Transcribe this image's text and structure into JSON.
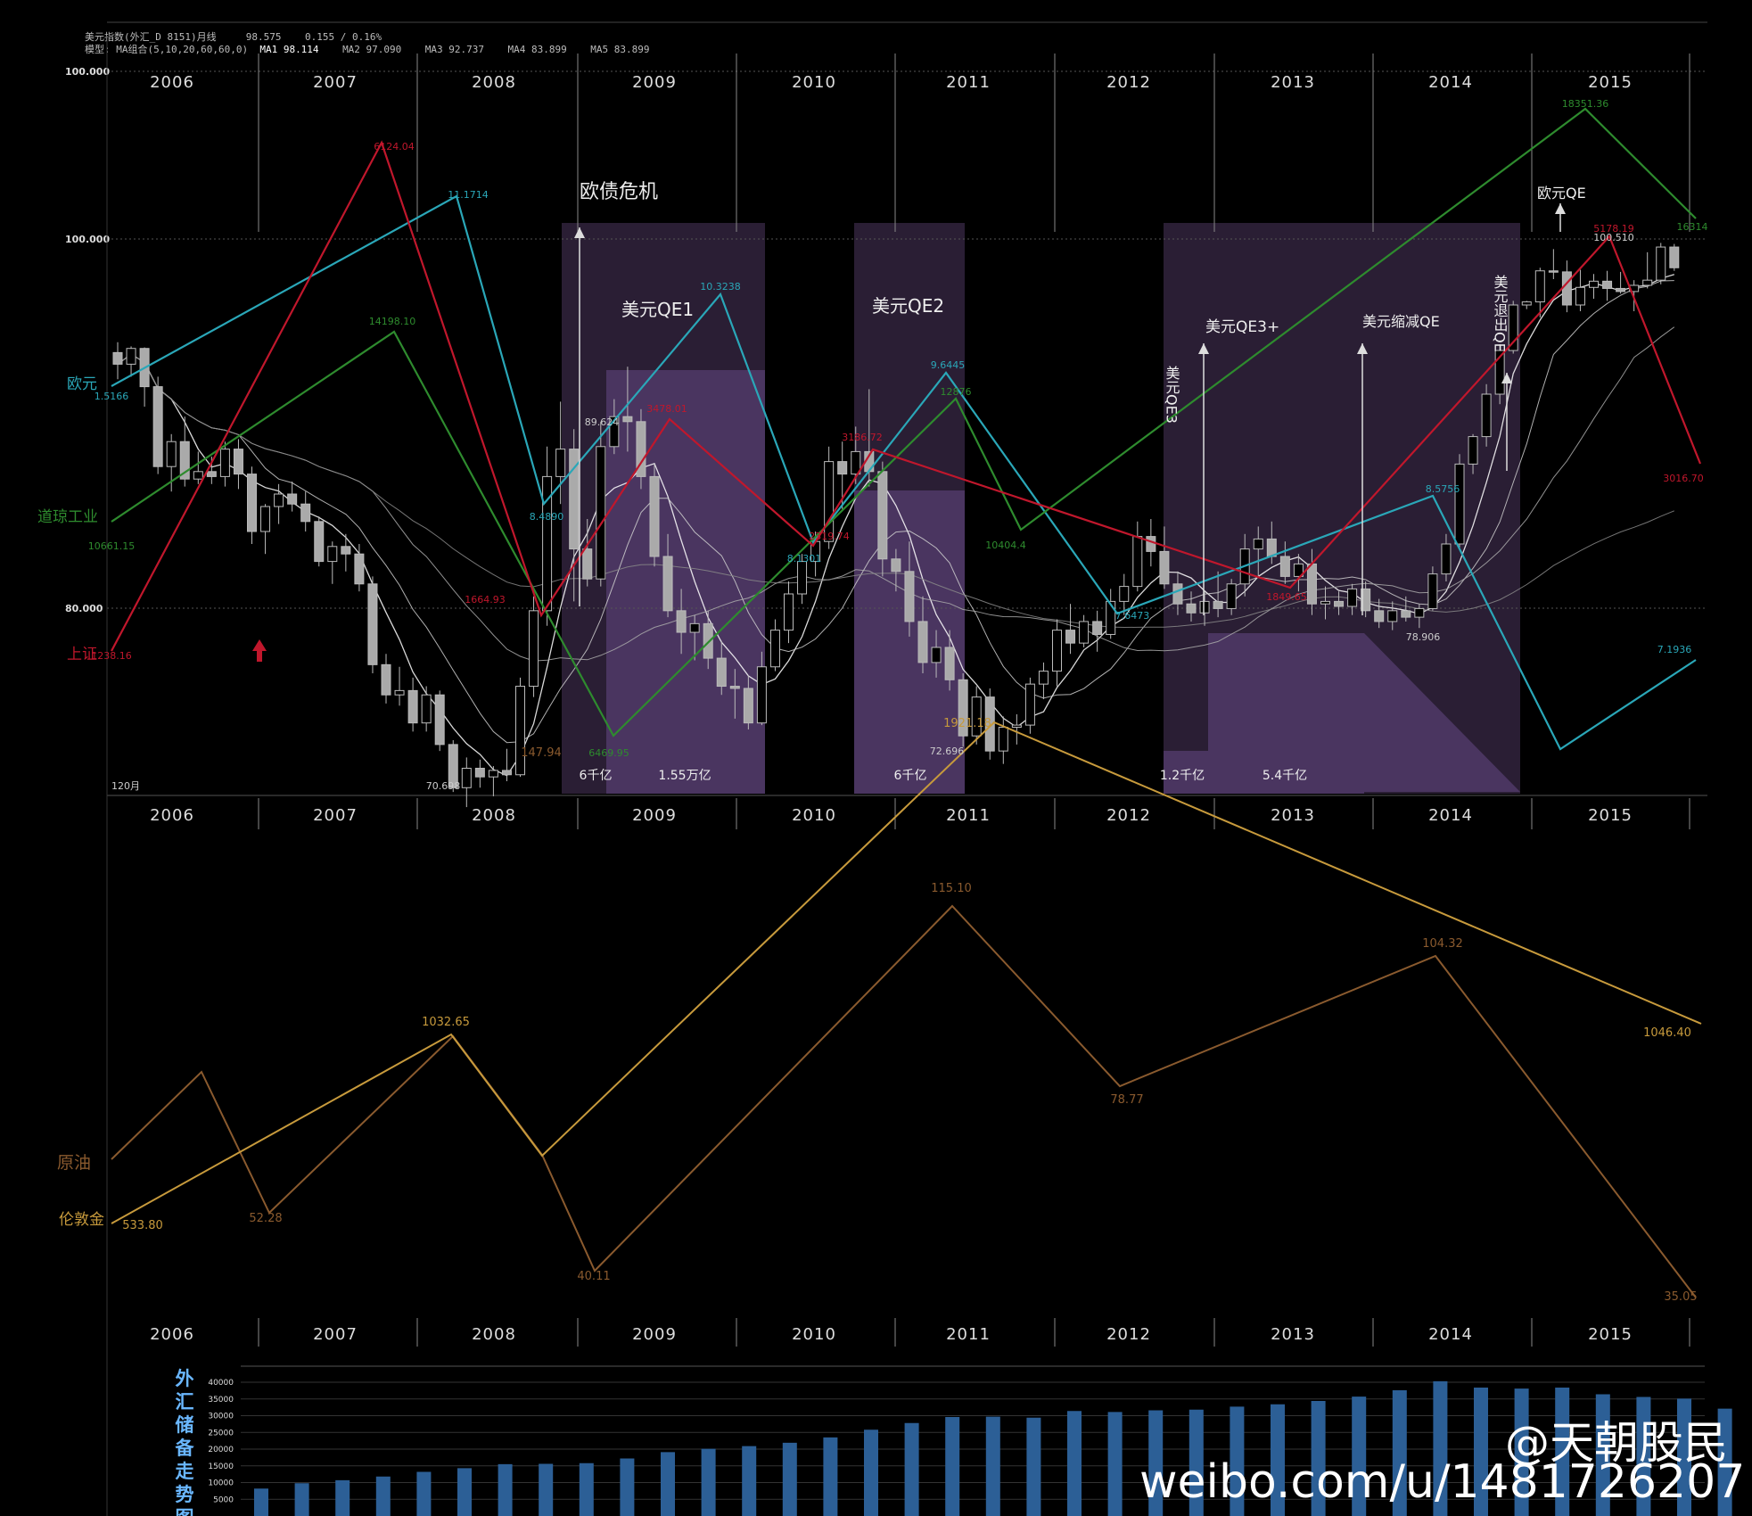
{
  "header": {
    "line1_name": "美元指数(外汇_D 8151)月线",
    "line1_price": "98.575",
    "line1_change": "0.155 / 0.16%",
    "line2_model": "模型: MA组合(5,10,20,60,60,0)",
    "ma1": "MA1 98.114",
    "ma2": "MA2 97.090",
    "ma3": "MA3 92.737",
    "ma4": "MA4 83.899",
    "ma5": "MA5 83.899"
  },
  "axis": {
    "y_labels": [
      "100.000",
      "100.000",
      "80.000"
    ],
    "period_label": "120月"
  },
  "chart_data": [
    {
      "type": "candlestick",
      "name": "美元指数 月线",
      "years_top": [
        "2006",
        "2007",
        "2008",
        "2009",
        "2010",
        "2011",
        "2012",
        "2013",
        "2014",
        "2015"
      ],
      "years_bottom": [
        "2006",
        "2007",
        "2008",
        "2009",
        "2010",
        "2011",
        "2012",
        "2013",
        "2014",
        "2015"
      ],
      "years_oil": [
        "2006",
        "2007",
        "2008",
        "2009",
        "2010",
        "2011",
        "2012",
        "2013",
        "2014",
        "2015"
      ],
      "candles": [
        {
          "o": 90.4,
          "h": 91.4,
          "l": 89.1,
          "c": 89.7
        },
        {
          "o": 89.7,
          "h": 91.0,
          "l": 89.2,
          "c": 90.8
        },
        {
          "o": 90.8,
          "h": 90.9,
          "l": 88.0,
          "c": 88.8
        },
        {
          "o": 88.8,
          "h": 89.2,
          "l": 85.3,
          "c": 85.6
        },
        {
          "o": 85.6,
          "h": 86.9,
          "l": 84.6,
          "c": 86.6
        },
        {
          "o": 86.6,
          "h": 87.6,
          "l": 84.8,
          "c": 85.1
        },
        {
          "o": 85.1,
          "h": 86.2,
          "l": 84.9,
          "c": 85.4
        },
        {
          "o": 85.4,
          "h": 86.0,
          "l": 84.9,
          "c": 85.2
        },
        {
          "o": 85.2,
          "h": 86.6,
          "l": 84.8,
          "c": 86.3
        },
        {
          "o": 86.3,
          "h": 86.7,
          "l": 84.7,
          "c": 85.3
        },
        {
          "o": 85.3,
          "h": 85.6,
          "l": 82.5,
          "c": 83.0
        },
        {
          "o": 83.0,
          "h": 84.1,
          "l": 82.1,
          "c": 84.0
        },
        {
          "o": 84.0,
          "h": 84.9,
          "l": 83.3,
          "c": 84.5
        },
        {
          "o": 84.5,
          "h": 85.0,
          "l": 83.8,
          "c": 84.1
        },
        {
          "o": 84.1,
          "h": 84.6,
          "l": 83.0,
          "c": 83.4
        },
        {
          "o": 83.4,
          "h": 83.6,
          "l": 81.6,
          "c": 81.8
        },
        {
          "o": 81.8,
          "h": 82.6,
          "l": 80.9,
          "c": 82.4
        },
        {
          "o": 82.4,
          "h": 82.9,
          "l": 81.4,
          "c": 82.1
        },
        {
          "o": 82.1,
          "h": 82.5,
          "l": 80.6,
          "c": 80.9
        },
        {
          "o": 80.9,
          "h": 81.2,
          "l": 76.9,
          "c": 77.3
        },
        {
          "o": 77.3,
          "h": 77.8,
          "l": 75.5,
          "c": 75.9
        },
        {
          "o": 75.9,
          "h": 77.2,
          "l": 75.4,
          "c": 76.1
        },
        {
          "o": 76.1,
          "h": 76.7,
          "l": 74.2,
          "c": 74.6
        },
        {
          "o": 74.6,
          "h": 76.3,
          "l": 74.2,
          "c": 75.9
        },
        {
          "o": 75.9,
          "h": 76.1,
          "l": 73.3,
          "c": 73.6
        },
        {
          "o": 73.6,
          "h": 73.8,
          "l": 71.4,
          "c": 71.6
        },
        {
          "o": 71.6,
          "h": 73.0,
          "l": 70.7,
          "c": 72.5
        },
        {
          "o": 72.5,
          "h": 72.9,
          "l": 71.6,
          "c": 72.1
        },
        {
          "o": 72.1,
          "h": 72.6,
          "l": 71.2,
          "c": 72.4
        },
        {
          "o": 72.4,
          "h": 73.4,
          "l": 71.9,
          "c": 72.2
        },
        {
          "o": 72.2,
          "h": 76.7,
          "l": 72.1,
          "c": 76.3
        },
        {
          "o": 76.3,
          "h": 80.4,
          "l": 75.8,
          "c": 79.8
        },
        {
          "o": 79.8,
          "h": 86.4,
          "l": 79.1,
          "c": 85.2
        },
        {
          "o": 85.2,
          "h": 88.2,
          "l": 84.1,
          "c": 86.3
        },
        {
          "o": 86.3,
          "h": 87.1,
          "l": 80.2,
          "c": 82.3
        },
        {
          "o": 82.3,
          "h": 83.5,
          "l": 80.8,
          "c": 81.1
        },
        {
          "o": 81.1,
          "h": 87.4,
          "l": 80.8,
          "c": 86.4
        },
        {
          "o": 86.4,
          "h": 88.3,
          "l": 86.1,
          "c": 87.6
        },
        {
          "o": 87.6,
          "h": 89.6,
          "l": 86.2,
          "c": 87.4
        },
        {
          "o": 87.4,
          "h": 87.9,
          "l": 84.7,
          "c": 85.2
        },
        {
          "o": 85.2,
          "h": 85.7,
          "l": 81.6,
          "c": 82.0
        },
        {
          "o": 82.0,
          "h": 82.9,
          "l": 79.5,
          "c": 79.8
        },
        {
          "o": 79.8,
          "h": 80.7,
          "l": 77.8,
          "c": 78.8
        },
        {
          "o": 78.8,
          "h": 79.6,
          "l": 77.5,
          "c": 79.2
        },
        {
          "o": 79.2,
          "h": 79.8,
          "l": 77.1,
          "c": 77.6
        },
        {
          "o": 77.6,
          "h": 78.4,
          "l": 75.9,
          "c": 76.3
        },
        {
          "o": 76.3,
          "h": 77.1,
          "l": 74.8,
          "c": 76.2
        },
        {
          "o": 76.2,
          "h": 76.8,
          "l": 74.3,
          "c": 74.6
        },
        {
          "o": 74.6,
          "h": 77.9,
          "l": 74.5,
          "c": 77.2
        },
        {
          "o": 77.2,
          "h": 79.4,
          "l": 77.0,
          "c": 78.9
        },
        {
          "o": 78.9,
          "h": 81.0,
          "l": 78.3,
          "c": 80.5
        },
        {
          "o": 80.5,
          "h": 82.1,
          "l": 80.1,
          "c": 81.8
        },
        {
          "o": 81.8,
          "h": 83.0,
          "l": 81.2,
          "c": 82.6
        },
        {
          "o": 82.6,
          "h": 86.4,
          "l": 82.3,
          "c": 85.8
        },
        {
          "o": 85.8,
          "h": 86.6,
          "l": 83.9,
          "c": 85.3
        },
        {
          "o": 85.3,
          "h": 87.2,
          "l": 84.9,
          "c": 86.2
        },
        {
          "o": 86.2,
          "h": 88.7,
          "l": 84.8,
          "c": 85.4
        },
        {
          "o": 85.4,
          "h": 85.8,
          "l": 81.2,
          "c": 81.9
        },
        {
          "o": 81.9,
          "h": 82.3,
          "l": 80.6,
          "c": 81.4
        },
        {
          "o": 81.4,
          "h": 82.6,
          "l": 78.6,
          "c": 79.3
        },
        {
          "o": 79.3,
          "h": 80.4,
          "l": 76.9,
          "c": 77.4
        },
        {
          "o": 77.4,
          "h": 78.9,
          "l": 76.7,
          "c": 78.1
        },
        {
          "o": 78.1,
          "h": 78.9,
          "l": 76.1,
          "c": 76.6
        },
        {
          "o": 76.6,
          "h": 76.9,
          "l": 73.5,
          "c": 74.0
        },
        {
          "o": 74.0,
          "h": 76.3,
          "l": 73.6,
          "c": 75.8
        },
        {
          "o": 75.8,
          "h": 76.2,
          "l": 72.9,
          "c": 73.3
        },
        {
          "o": 73.3,
          "h": 74.9,
          "l": 72.7,
          "c": 74.4
        },
        {
          "o": 74.4,
          "h": 75.0,
          "l": 73.6,
          "c": 74.5
        },
        {
          "o": 74.5,
          "h": 76.7,
          "l": 74.1,
          "c": 76.4
        },
        {
          "o": 76.4,
          "h": 77.4,
          "l": 75.7,
          "c": 77.0
        },
        {
          "o": 77.0,
          "h": 79.4,
          "l": 76.3,
          "c": 78.9
        },
        {
          "o": 78.9,
          "h": 80.1,
          "l": 77.8,
          "c": 78.3
        },
        {
          "o": 78.3,
          "h": 79.6,
          "l": 78.1,
          "c": 79.3
        },
        {
          "o": 79.3,
          "h": 79.8,
          "l": 77.9,
          "c": 78.7
        },
        {
          "o": 78.7,
          "h": 80.7,
          "l": 78.5,
          "c": 80.2
        },
        {
          "o": 80.2,
          "h": 81.3,
          "l": 79.6,
          "c": 80.8
        },
        {
          "o": 80.8,
          "h": 83.4,
          "l": 80.6,
          "c": 82.8
        },
        {
          "o": 82.8,
          "h": 83.5,
          "l": 81.6,
          "c": 82.2
        },
        {
          "o": 82.2,
          "h": 83.2,
          "l": 80.7,
          "c": 80.9
        },
        {
          "o": 80.9,
          "h": 81.4,
          "l": 79.6,
          "c": 80.1
        },
        {
          "o": 80.1,
          "h": 80.6,
          "l": 79.3,
          "c": 79.7
        },
        {
          "o": 79.7,
          "h": 80.6,
          "l": 79.1,
          "c": 80.2
        },
        {
          "o": 80.2,
          "h": 81.4,
          "l": 79.5,
          "c": 79.9
        },
        {
          "o": 79.9,
          "h": 81.1,
          "l": 79.6,
          "c": 80.9
        },
        {
          "o": 80.9,
          "h": 82.9,
          "l": 80.4,
          "c": 82.3
        },
        {
          "o": 82.3,
          "h": 83.2,
          "l": 81.2,
          "c": 82.7
        },
        {
          "o": 82.7,
          "h": 83.4,
          "l": 81.7,
          "c": 82.0
        },
        {
          "o": 82.0,
          "h": 82.6,
          "l": 80.9,
          "c": 81.2
        },
        {
          "o": 81.2,
          "h": 82.1,
          "l": 80.6,
          "c": 81.7
        },
        {
          "o": 81.7,
          "h": 82.3,
          "l": 79.6,
          "c": 80.1
        },
        {
          "o": 80.1,
          "h": 80.8,
          "l": 79.4,
          "c": 80.2
        },
        {
          "o": 80.2,
          "h": 80.6,
          "l": 79.6,
          "c": 80.0
        },
        {
          "o": 80.0,
          "h": 80.9,
          "l": 79.6,
          "c": 80.7
        },
        {
          "o": 80.7,
          "h": 81.0,
          "l": 79.5,
          "c": 79.8
        },
        {
          "o": 79.8,
          "h": 80.3,
          "l": 79.0,
          "c": 79.3
        },
        {
          "o": 79.3,
          "h": 80.2,
          "l": 78.9,
          "c": 79.8
        },
        {
          "o": 79.8,
          "h": 80.4,
          "l": 79.3,
          "c": 79.5
        },
        {
          "o": 79.5,
          "h": 80.1,
          "l": 79.0,
          "c": 79.9
        },
        {
          "o": 79.9,
          "h": 81.6,
          "l": 79.8,
          "c": 81.3
        },
        {
          "o": 81.3,
          "h": 82.9,
          "l": 81.0,
          "c": 82.5
        },
        {
          "o": 82.5,
          "h": 86.1,
          "l": 82.3,
          "c": 85.7
        },
        {
          "o": 85.7,
          "h": 86.9,
          "l": 85.3,
          "c": 86.8
        },
        {
          "o": 86.8,
          "h": 88.9,
          "l": 86.4,
          "c": 88.5
        },
        {
          "o": 88.5,
          "h": 91.2,
          "l": 88.1,
          "c": 90.6
        },
        {
          "o": 90.6,
          "h": 95.4,
          "l": 90.3,
          "c": 95.0
        },
        {
          "o": 95.0,
          "h": 95.4,
          "l": 94.6,
          "c": 95.3
        },
        {
          "o": 95.3,
          "h": 98.6,
          "l": 93.8,
          "c": 98.3
        },
        {
          "o": 98.3,
          "h": 100.4,
          "l": 97.5,
          "c": 98.2
        },
        {
          "o": 98.2,
          "h": 99.3,
          "l": 94.3,
          "c": 95.0
        },
        {
          "o": 95.0,
          "h": 98.4,
          "l": 94.4,
          "c": 96.7
        },
        {
          "o": 96.7,
          "h": 98.0,
          "l": 95.6,
          "c": 97.3
        },
        {
          "o": 97.3,
          "h": 98.3,
          "l": 95.4,
          "c": 96.6
        },
        {
          "o": 96.6,
          "h": 98.2,
          "l": 96.1,
          "c": 96.3
        },
        {
          "o": 96.3,
          "h": 97.4,
          "l": 94.4,
          "c": 96.9
        },
        {
          "o": 96.9,
          "h": 100.1,
          "l": 96.6,
          "c": 97.4
        },
        {
          "o": 97.4,
          "h": 101.0,
          "l": 97.0,
          "c": 100.6
        },
        {
          "o": 100.6,
          "h": 100.9,
          "l": 98.3,
          "c": 98.6
        }
      ],
      "ma_series_names": [
        "MA1",
        "MA2",
        "MA3",
        "MA4",
        "MA5"
      ],
      "y_scale_note": "nonlinear composite"
    },
    {
      "type": "line",
      "name": "overlay index series",
      "series": [
        {
          "name": "欧元",
          "color": "#2aa7b8",
          "labels": [
            "1.5166",
            "11.1714",
            "8.4890",
            "10.3238",
            "8.1301",
            "9.6445",
            "7.6473",
            "8.5756",
            "7.1936"
          ]
        },
        {
          "name": "道琼工业",
          "color": "#2e8b2e",
          "labels": [
            "10661.15",
            "14198.10",
            "6469.95",
            "12876",
            "10404.4",
            "18351.36",
            "16314"
          ]
        },
        {
          "name": "上证",
          "color": "#c0172c",
          "labels": [
            "1238.16",
            "6124.04",
            "1664.93",
            "3478.01",
            "2319.74",
            "3186.72",
            "1849.65",
            "5178.19",
            "3016.70"
          ]
        },
        {
          "name": "原油",
          "color": "#8a5a2e",
          "labels": [
            "147.94",
            "40.11",
            "115.10",
            "78.77",
            "104.32",
            "35.05",
            "52.28"
          ]
        },
        {
          "name": "伦敦金",
          "color": "#c79a3c",
          "labels": [
            "533.80",
            "1032.65",
            "1921.18",
            "1046.40"
          ]
        }
      ],
      "extra_labels": [
        "89.624",
        "72.696",
        "78.906",
        "70.698",
        "100.510"
      ]
    },
    {
      "type": "bar",
      "name": "外汇储备走势图",
      "y_ticks": [
        "40000",
        "35000",
        "30000",
        "25000",
        "20000",
        "15000",
        "10000",
        "5000"
      ],
      "values": [
        8200,
        9800,
        10700,
        11800,
        13200,
        14300,
        15500,
        15600,
        15800,
        17200,
        19100,
        20100,
        20900,
        21900,
        23500,
        25800,
        27800,
        29600,
        29700,
        29400,
        31400,
        31100,
        31600,
        31800,
        32700,
        33400,
        34400,
        35700,
        37600,
        40300,
        38400,
        38100,
        38400,
        36400,
        35600,
        35100,
        32100
      ]
    }
  ],
  "annotations": {
    "ou_crisis": "欧债危机",
    "qe1": "美元QE1",
    "qe2": "美元QE2",
    "qe3plus": "美元QE3+",
    "qe3": "美元QE3",
    "taper": "美元缩减QE",
    "exit": "美元退出QE",
    "euro_qe": "欧元QE",
    "amt_6k_1": "6千亿",
    "amt_155": "1.55万亿",
    "amt_6k_2": "6千亿",
    "amt_12": "1.2千亿",
    "amt_54": "5.4千亿"
  },
  "legend": {
    "euro": "欧元",
    "dow": "道琼工业",
    "shanghai": "上证",
    "oil": "原油",
    "gold": "伦敦金",
    "reserve_title": "外汇储备走势图"
  },
  "watermark": {
    "handle": "@天朝股民",
    "url": "weibo.com/u/1481726207"
  },
  "colors": {
    "euro": "#2aa7b8",
    "dow": "#2e8b2e",
    "shanghai": "#c0172c",
    "oil": "#8a5a2e",
    "gold": "#c79a3c",
    "bar": "#2c5f96",
    "qe_band": "#2a1e34",
    "qe_amount": "#4a3560"
  }
}
